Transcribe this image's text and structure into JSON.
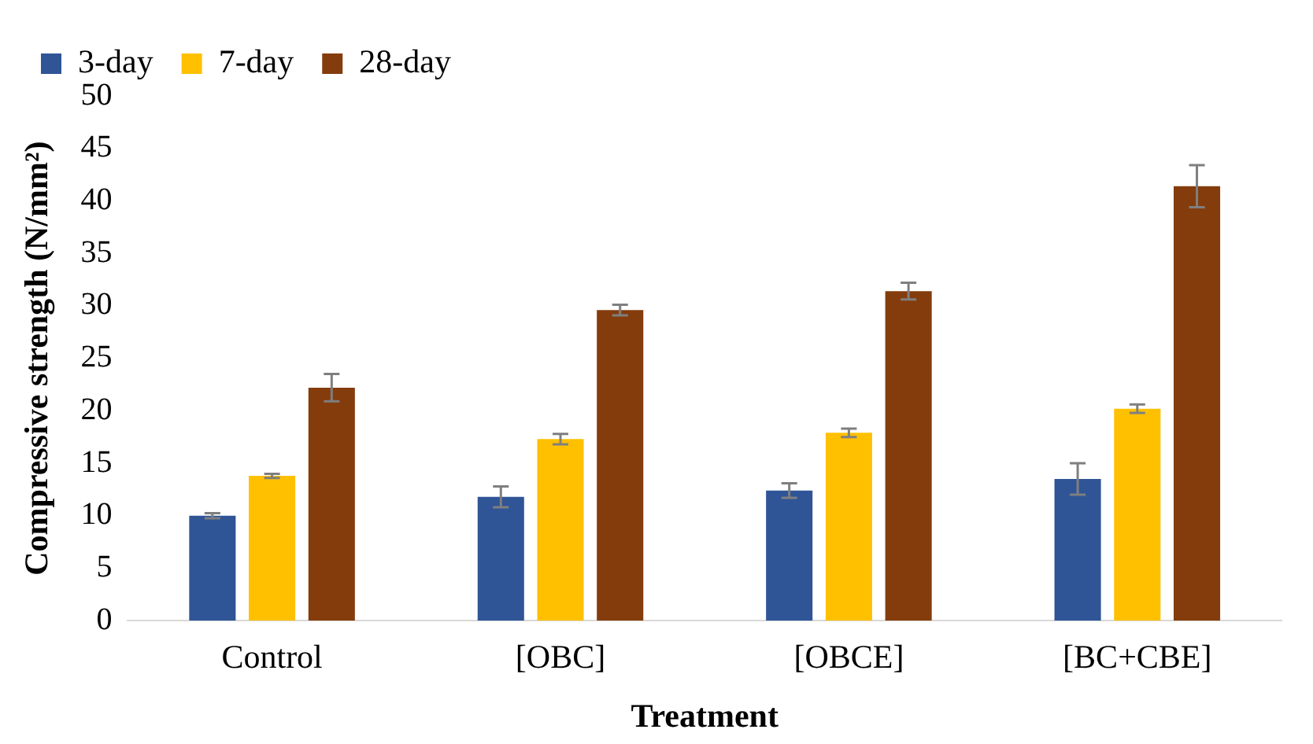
{
  "chart_data": {
    "type": "bar",
    "xlabel": "Treatment",
    "ylabel": "Compressive strength (N/mm²)",
    "categories": [
      "Control",
      "[OBC]",
      "[OBCE]",
      "[BC+CBE]"
    ],
    "series": [
      {
        "name": "3-day",
        "color": "#2f5597",
        "values": [
          10.0,
          11.8,
          12.4,
          13.5
        ],
        "errors": [
          0.25,
          1.0,
          0.7,
          1.5
        ]
      },
      {
        "name": "7-day",
        "color": "#ffc000",
        "values": [
          13.8,
          17.3,
          17.9,
          20.2
        ],
        "errors": [
          0.2,
          0.5,
          0.4,
          0.4
        ]
      },
      {
        "name": "28-day",
        "color": "#843c0c",
        "values": [
          22.2,
          29.6,
          31.4,
          41.4
        ],
        "errors": [
          1.3,
          0.5,
          0.8,
          2.0
        ]
      }
    ],
    "ylim": [
      0,
      50
    ],
    "yticks": [
      0,
      5,
      10,
      15,
      20,
      25,
      30,
      35,
      40,
      45,
      50
    ],
    "grid": false,
    "legend": "top left"
  }
}
